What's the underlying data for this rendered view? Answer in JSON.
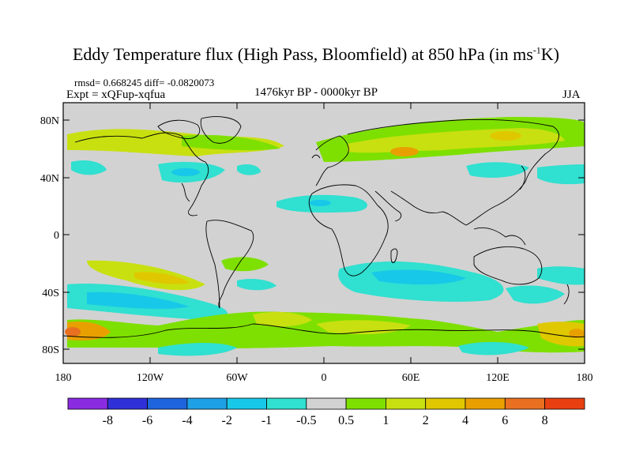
{
  "title": {
    "main": "Eddy Temperature flux (High Pass, Bloomfield) at 850 hPa (in ms",
    "sup": "-1",
    "tail": "K)"
  },
  "stats": "rmsd= 0.668245 diff= -0.0820073",
  "expt": "Expt = xQFup-xqfua",
  "period": "1476kyr BP - 0000kyr BP",
  "season": "JJA",
  "axes": {
    "lat_ticks": [
      "80N",
      "40N",
      "0",
      "40S",
      "80S"
    ],
    "lon_ticks": [
      "180",
      "120W",
      "60W",
      "0",
      "60E",
      "120E",
      "180"
    ]
  },
  "colorbar": {
    "colors": [
      "#8a2be2",
      "#3030d8",
      "#1e64dc",
      "#1ea0e6",
      "#18c8e8",
      "#30e0d0",
      "#d2d2d2",
      "#7ee000",
      "#c8e010",
      "#e0c800",
      "#e8a000",
      "#e87020",
      "#e84010"
    ],
    "labels": [
      "-8",
      "-6",
      "-4",
      "-2",
      "-1",
      "-0.5",
      "0.5",
      "1",
      "2",
      "4",
      "6",
      "8"
    ]
  }
}
